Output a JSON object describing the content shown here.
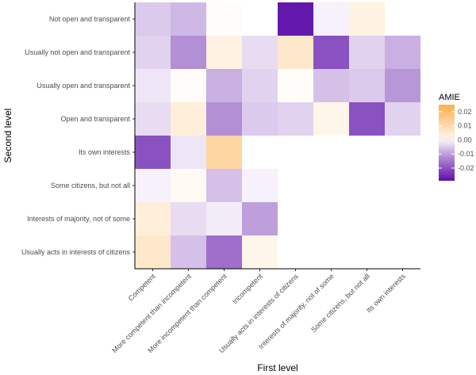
{
  "chart_data": {
    "type": "heatmap",
    "xlabel": "First level",
    "ylabel": "Second level",
    "x_categories": [
      "Competent",
      "More competent than incompetent",
      "More incompetent than competent",
      "Incompetent",
      "Usually acts in interests of citizens",
      "Interests of majority, not of some",
      "Some citizens, but not all",
      "Its own interests"
    ],
    "y_categories": [
      "Not open and transparent",
      "Usually not open and transparent",
      "Usually open and transparent",
      "Open and transparent",
      "Its own interests",
      "Some citizens, but not all",
      "Interests of majority, not of some",
      "Usually acts in interests of citizens"
    ],
    "values": [
      [
        -0.005,
        -0.007,
        0.0005,
        0.0,
        -0.028,
        -0.001,
        0.003,
        null
      ],
      [
        -0.004,
        -0.012,
        0.003,
        -0.003,
        0.006,
        -0.02,
        -0.004,
        -0.008
      ],
      [
        -0.002,
        0.0005,
        -0.008,
        -0.004,
        0.0005,
        -0.006,
        -0.005,
        -0.011
      ],
      [
        -0.003,
        0.004,
        -0.012,
        -0.005,
        -0.004,
        0.002,
        -0.02,
        -0.004
      ],
      [
        -0.02,
        -0.002,
        0.012,
        null,
        null,
        null,
        null,
        null
      ],
      [
        -0.001,
        0.001,
        -0.006,
        -0.001,
        null,
        null,
        null,
        null
      ],
      [
        0.004,
        -0.003,
        -0.0015,
        -0.01,
        null,
        null,
        null,
        null
      ],
      [
        0.006,
        -0.006,
        -0.016,
        0.002,
        null,
        null,
        null,
        null
      ]
    ],
    "legend": {
      "title": "AMIE",
      "ticks": [
        0.02,
        0.01,
        0.0,
        -0.01,
        -0.02
      ],
      "tick_labels": [
        "0.02",
        "0.01",
        "0.00",
        "-0.01",
        "-0.02"
      ],
      "min": -0.029,
      "max": 0.025,
      "colors": {
        "neg": "#5e11a8",
        "mid": "#ffffff",
        "pos": "#fbb04f"
      }
    }
  }
}
